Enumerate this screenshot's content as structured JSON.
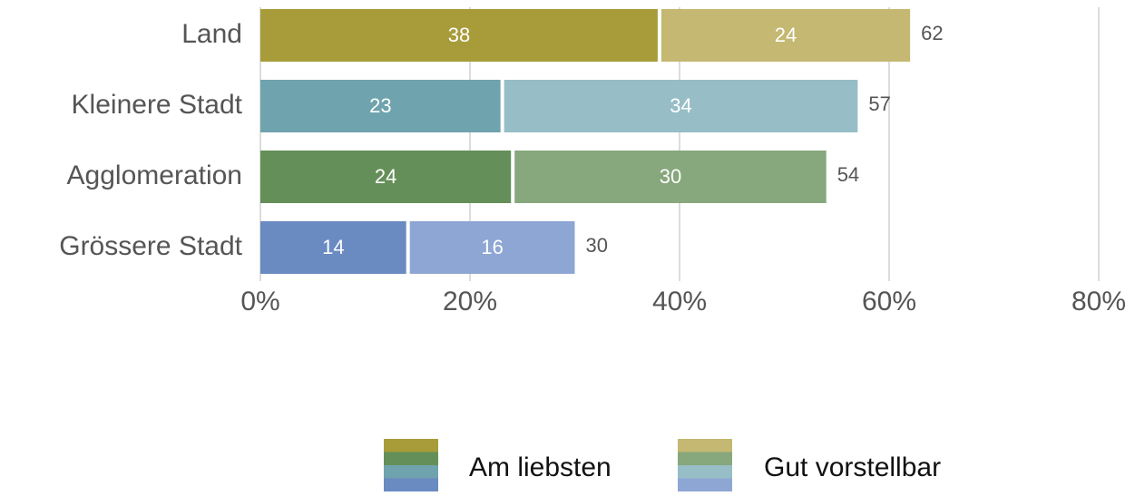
{
  "chart_data": {
    "type": "stacked_barh",
    "categories": [
      "Land",
      "Kleinere Stadt",
      "Agglomeration",
      "Grössere Stadt"
    ],
    "series": [
      {
        "name": "Am liebsten",
        "colors": [
          "#a89c3a",
          "#6fa3ae",
          "#648f58",
          "#6a8ac2"
        ],
        "values": [
          38,
          23,
          24,
          14
        ]
      },
      {
        "name": "Gut vorstellbar",
        "colors": [
          "#c4b872",
          "#97bec6",
          "#87a77c",
          "#8ea6d4"
        ],
        "values": [
          24,
          34,
          30,
          16
        ]
      }
    ],
    "totals": [
      62,
      57,
      54,
      30
    ],
    "xlim": [
      0,
      80
    ],
    "xticks": [
      {
        "value": 0,
        "label": "0%"
      },
      {
        "value": 20,
        "label": "20%"
      },
      {
        "value": 40,
        "label": "40%"
      },
      {
        "value": 60,
        "label": "60%"
      },
      {
        "value": 80,
        "label": "80%"
      }
    ],
    "grid": true
  }
}
